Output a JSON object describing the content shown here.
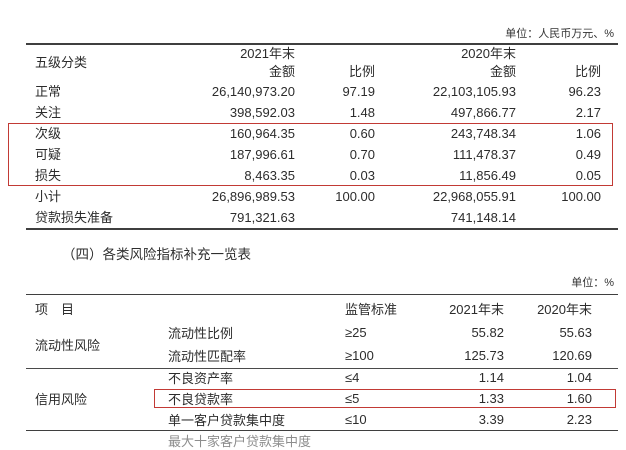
{
  "accent_red": "#c23a35",
  "table1": {
    "unit_label": "单位：人民币万元、%",
    "header": {
      "row_label": "五级分类",
      "year_2021": "2021年末",
      "year_2020": "2020年末",
      "amount_label_2021": "金额",
      "ratio_label_2021": "比例",
      "amount_label_2020": "金额",
      "ratio_label_2020": "比例"
    },
    "rows": [
      {
        "label": "正常",
        "amount_2021": "26,140,973.20",
        "ratio_2021": "97.19",
        "amount_2020": "22,103,105.93",
        "ratio_2020": "96.23"
      },
      {
        "label": "关注",
        "amount_2021": "398,592.03",
        "ratio_2021": "1.48",
        "amount_2020": "497,866.77",
        "ratio_2020": "2.17"
      },
      {
        "label": "次级",
        "amount_2021": "160,964.35",
        "ratio_2021": "0.60",
        "amount_2020": "243,748.34",
        "ratio_2020": "1.06"
      },
      {
        "label": "可疑",
        "amount_2021": "187,996.61",
        "ratio_2021": "0.70",
        "amount_2020": "111,478.37",
        "ratio_2020": "0.49"
      },
      {
        "label": "损失",
        "amount_2021": "8,463.35",
        "ratio_2021": "0.03",
        "amount_2020": "11,856.49",
        "ratio_2020": "0.05"
      },
      {
        "label": "小计",
        "amount_2021": "26,896,989.53",
        "ratio_2021": "100.00",
        "amount_2020": "22,968,055.91",
        "ratio_2020": "100.00"
      },
      {
        "label": "贷款损失准备",
        "amount_2021": "791,321.63",
        "ratio_2021": "",
        "amount_2020": "741,148.14",
        "ratio_2020": ""
      }
    ]
  },
  "section_title": "（四）各类风险指标补充一览表",
  "table2": {
    "unit_label": "单位：%",
    "header": {
      "item": "项　目",
      "standard": "监管标准",
      "year_2021": "2021年末",
      "year_2020": "2020年末"
    },
    "group_liquidity": {
      "label": "流动性风险",
      "rows": [
        {
          "item": "流动性比例",
          "standard": "≥25",
          "v2021": "55.82",
          "v2020": "55.63"
        },
        {
          "item": "流动性匹配率",
          "standard": "≥100",
          "v2021": "125.73",
          "v2020": "120.69"
        }
      ]
    },
    "group_credit": {
      "label": "信用风险",
      "rows": [
        {
          "item": "不良资产率",
          "standard": "≤4",
          "v2021": "1.14",
          "v2020": "1.04"
        },
        {
          "item": "不良贷款率",
          "standard": "≤5",
          "v2021": "1.33",
          "v2020": "1.60"
        },
        {
          "item": "单一客户贷款集中度",
          "standard": "≤10",
          "v2021": "3.39",
          "v2020": "2.23"
        }
      ]
    },
    "clipped_row_text": "最大十家客户贷款集中度"
  }
}
